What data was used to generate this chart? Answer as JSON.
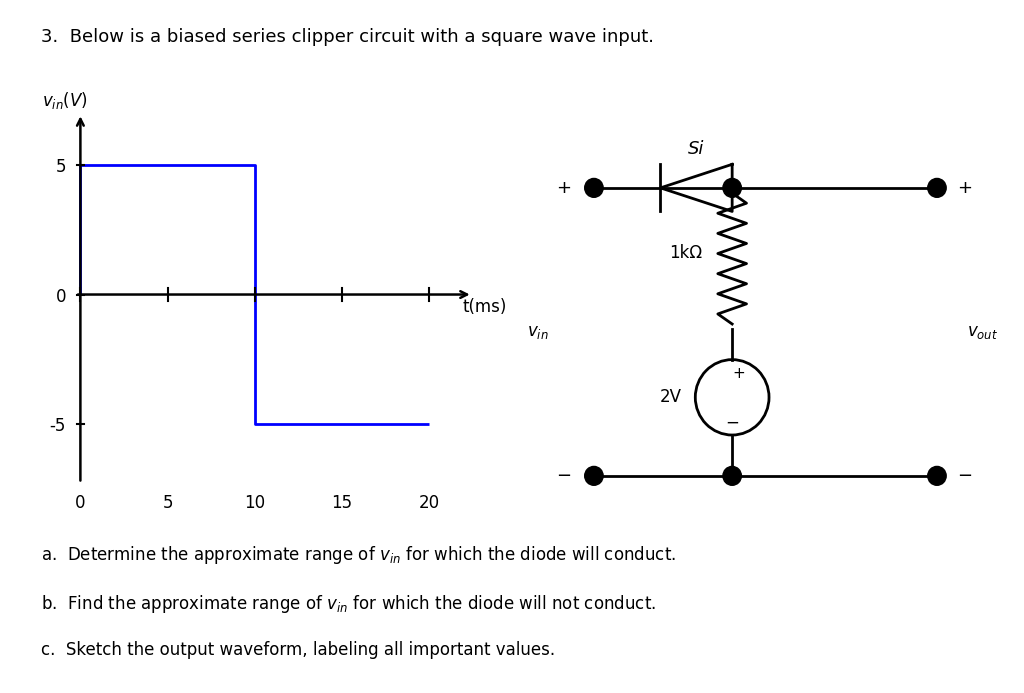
{
  "title_text": "3.  Below is a biased series clipper circuit with a square wave input.",
  "wave_color": "#0000FF",
  "bg_color": "#FFFFFF",
  "yticks": [
    -5,
    0,
    5
  ],
  "xticks": [
    0,
    5,
    10,
    15,
    20
  ],
  "ylim": [
    -7.5,
    7.5
  ],
  "xlim": [
    -0.5,
    23
  ],
  "circuit": {
    "diode_label": "Si",
    "resistor_label": "1kΩ",
    "battery_label": "2V"
  },
  "qa": "a.  Determine the approximate range of $v_{in}$ for which the diode will conduct.",
  "qb": "b.  Find the approximate range of $v_{in}$ for which the diode will not conduct.",
  "qc": "c.  Sketch the output waveform, labeling all important values."
}
